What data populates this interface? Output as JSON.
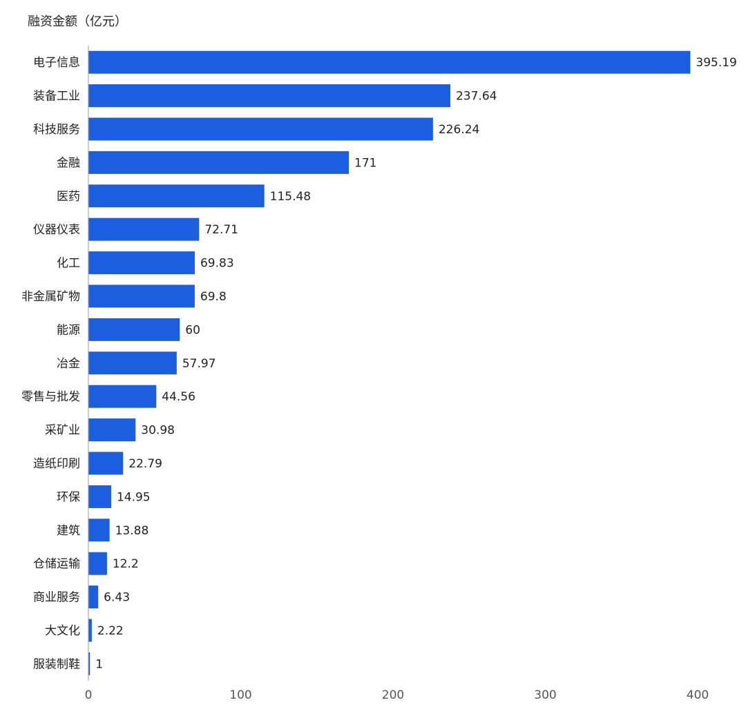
{
  "chart_data": {
    "type": "bar",
    "orientation": "horizontal",
    "title": "融资金额（亿元）",
    "categories": [
      "电子信息",
      "装备工业",
      "科技服务",
      "金融",
      "医药",
      "仪器仪表",
      "化工",
      "非金属矿物",
      "能源",
      "冶金",
      "零售与批发",
      "采矿业",
      "造纸印刷",
      "环保",
      "建筑",
      "仓储运输",
      "商业服务",
      "大文化",
      "服装制鞋"
    ],
    "values": [
      395.19,
      237.64,
      226.24,
      171,
      115.48,
      72.71,
      69.83,
      69.8,
      60,
      57.97,
      44.56,
      30.98,
      22.79,
      14.95,
      13.88,
      12.2,
      6.43,
      2.22,
      1
    ],
    "value_labels": [
      "395.19",
      "237.64",
      "226.24",
      "171",
      "115.48",
      "72.71",
      "69.83",
      "69.8",
      "60",
      "57.97",
      "44.56",
      "30.98",
      "22.79",
      "14.95",
      "13.88",
      "12.2",
      "6.43",
      "2.22",
      "1"
    ],
    "x_ticks": [
      "0",
      "100",
      "200",
      "300",
      "400"
    ],
    "xlim": [
      0,
      400
    ],
    "bar_color": "#1b5fe0",
    "grid": false,
    "legend": "none"
  }
}
